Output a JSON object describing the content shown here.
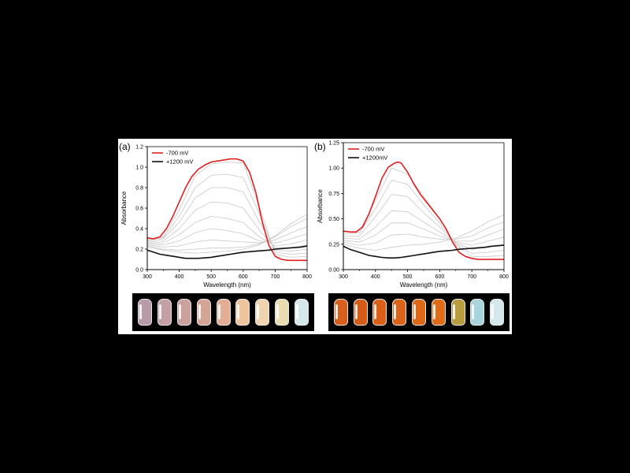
{
  "chart_data": [
    {
      "type": "line",
      "panel_label": "(a)",
      "xlabel": "Wavelength (nm)",
      "ylabel": "Absorbance",
      "xlim": [
        300,
        800
      ],
      "ylim": [
        0.0,
        1.2
      ],
      "xticks": [
        300,
        400,
        500,
        600,
        700,
        800
      ],
      "yticks": [
        0.0,
        0.2,
        0.4,
        0.6,
        0.8,
        1.0,
        1.2
      ],
      "xtick_labels": [
        "300",
        "400",
        "500",
        "600",
        "700",
        "800"
      ],
      "ytick_labels": [
        "0.0",
        "0.2",
        "0.4",
        "0.6",
        "0.8",
        "1.0",
        "1.2"
      ],
      "legend_position": "top-left",
      "series": [
        {
          "name": "-700 mV",
          "color": "#e02020",
          "width": 1.6,
          "x": [
            300,
            320,
            340,
            360,
            380,
            400,
            420,
            440,
            460,
            480,
            500,
            520,
            540,
            560,
            580,
            600,
            620,
            640,
            660,
            680,
            700,
            720,
            740,
            760,
            780,
            800
          ],
          "y": [
            0.31,
            0.3,
            0.32,
            0.4,
            0.52,
            0.66,
            0.8,
            0.91,
            0.98,
            1.02,
            1.05,
            1.06,
            1.07,
            1.08,
            1.08,
            1.06,
            0.95,
            0.75,
            0.46,
            0.24,
            0.13,
            0.1,
            0.09,
            0.09,
            0.09,
            0.09
          ]
        },
        {
          "name": "+1200 mV",
          "color": "#111111",
          "width": 1.6,
          "x": [
            300,
            320,
            340,
            360,
            380,
            400,
            420,
            440,
            460,
            480,
            500,
            520,
            540,
            560,
            580,
            600,
            620,
            640,
            660,
            680,
            700,
            720,
            740,
            760,
            780,
            800
          ],
          "y": [
            0.19,
            0.17,
            0.15,
            0.14,
            0.13,
            0.12,
            0.11,
            0.11,
            0.11,
            0.115,
            0.12,
            0.13,
            0.14,
            0.15,
            0.16,
            0.17,
            0.175,
            0.18,
            0.185,
            0.19,
            0.2,
            0.205,
            0.21,
            0.215,
            0.22,
            0.23
          ]
        },
        {
          "color": "#c8c8c8",
          "width": 0.8,
          "x": [
            300,
            350,
            400,
            450,
            500,
            550,
            600,
            650,
            700,
            750,
            800
          ],
          "y": [
            0.3,
            0.32,
            0.58,
            0.92,
            1.03,
            1.05,
            1.04,
            0.62,
            0.15,
            0.12,
            0.13
          ]
        },
        {
          "color": "#c8c8c8",
          "width": 0.8,
          "x": [
            300,
            350,
            400,
            450,
            500,
            550,
            600,
            650,
            700,
            750,
            800
          ],
          "y": [
            0.29,
            0.31,
            0.52,
            0.8,
            0.92,
            0.93,
            0.9,
            0.55,
            0.17,
            0.15,
            0.16
          ]
        },
        {
          "color": "#c8c8c8",
          "width": 0.8,
          "x": [
            300,
            350,
            400,
            450,
            500,
            550,
            600,
            650,
            700,
            750,
            800
          ],
          "y": [
            0.28,
            0.3,
            0.46,
            0.7,
            0.8,
            0.8,
            0.76,
            0.47,
            0.19,
            0.18,
            0.2
          ]
        },
        {
          "color": "#c8c8c8",
          "width": 0.8,
          "x": [
            300,
            350,
            400,
            450,
            500,
            550,
            600,
            650,
            700,
            750,
            800
          ],
          "y": [
            0.27,
            0.28,
            0.4,
            0.58,
            0.66,
            0.65,
            0.6,
            0.39,
            0.21,
            0.21,
            0.24
          ]
        },
        {
          "color": "#c8c8c8",
          "width": 0.8,
          "x": [
            300,
            350,
            400,
            450,
            500,
            550,
            600,
            650,
            700,
            750,
            800
          ],
          "y": [
            0.26,
            0.26,
            0.34,
            0.46,
            0.52,
            0.5,
            0.46,
            0.32,
            0.23,
            0.25,
            0.29
          ]
        },
        {
          "color": "#c8c8c8",
          "width": 0.8,
          "x": [
            300,
            350,
            400,
            450,
            500,
            550,
            600,
            650,
            700,
            750,
            800
          ],
          "y": [
            0.25,
            0.24,
            0.28,
            0.36,
            0.4,
            0.38,
            0.35,
            0.28,
            0.26,
            0.3,
            0.35
          ]
        },
        {
          "color": "#c8c8c8",
          "width": 0.8,
          "x": [
            300,
            350,
            400,
            450,
            500,
            550,
            600,
            650,
            700,
            750,
            800
          ],
          "y": [
            0.24,
            0.22,
            0.23,
            0.27,
            0.29,
            0.28,
            0.27,
            0.26,
            0.29,
            0.36,
            0.42
          ]
        },
        {
          "color": "#c8c8c8",
          "width": 0.8,
          "x": [
            300,
            350,
            400,
            450,
            500,
            550,
            600,
            650,
            700,
            750,
            800
          ],
          "y": [
            0.23,
            0.2,
            0.19,
            0.2,
            0.21,
            0.21,
            0.22,
            0.25,
            0.32,
            0.42,
            0.5
          ]
        },
        {
          "color": "#c8c8c8",
          "width": 0.8,
          "x": [
            300,
            350,
            400,
            450,
            500,
            550,
            600,
            650,
            700,
            750,
            800
          ],
          "y": [
            0.22,
            0.19,
            0.17,
            0.16,
            0.17,
            0.18,
            0.2,
            0.24,
            0.33,
            0.45,
            0.54
          ]
        }
      ],
      "vials": [
        "#b89aa8",
        "#c4a0a4",
        "#cca09c",
        "#d4a494",
        "#e2ae96",
        "#eec49c",
        "#f0d4ae",
        "#e8dcb0",
        "#d4e8ec"
      ]
    },
    {
      "type": "line",
      "panel_label": "(b)",
      "xlabel": "Wavelength (nm)",
      "ylabel": "Absorbance",
      "xlim": [
        300,
        800
      ],
      "ylim": [
        0.0,
        1.25
      ],
      "xticks": [
        300,
        400,
        500,
        600,
        700,
        800
      ],
      "yticks": [
        0.0,
        0.25,
        0.5,
        0.75,
        1.0,
        1.25
      ],
      "xtick_labels": [
        "300",
        "400",
        "500",
        "600",
        "700",
        "800"
      ],
      "ytick_labels": [
        "0.00",
        "0.25",
        "0.50",
        "0.75",
        "1.00",
        "1.25"
      ],
      "legend_position": "top-left",
      "series": [
        {
          "name": "-700 mV",
          "color": "#e02020",
          "width": 1.6,
          "x": [
            300,
            320,
            340,
            360,
            380,
            400,
            420,
            440,
            460,
            470,
            480,
            500,
            520,
            540,
            560,
            580,
            600,
            620,
            640,
            660,
            680,
            700,
            720,
            740,
            760,
            780,
            800
          ],
          "y": [
            0.38,
            0.37,
            0.37,
            0.42,
            0.55,
            0.72,
            0.9,
            1.01,
            1.05,
            1.06,
            1.05,
            0.96,
            0.84,
            0.74,
            0.66,
            0.58,
            0.5,
            0.4,
            0.27,
            0.17,
            0.13,
            0.11,
            0.1,
            0.1,
            0.1,
            0.1,
            0.1
          ]
        },
        {
          "name": "+1200mV",
          "color": "#111111",
          "width": 1.6,
          "x": [
            300,
            320,
            340,
            360,
            380,
            400,
            420,
            440,
            460,
            480,
            500,
            520,
            540,
            560,
            580,
            600,
            620,
            640,
            660,
            680,
            700,
            720,
            740,
            760,
            780,
            800
          ],
          "y": [
            0.23,
            0.2,
            0.18,
            0.16,
            0.14,
            0.13,
            0.12,
            0.115,
            0.115,
            0.12,
            0.13,
            0.14,
            0.15,
            0.16,
            0.17,
            0.18,
            0.185,
            0.19,
            0.2,
            0.205,
            0.21,
            0.215,
            0.22,
            0.23,
            0.235,
            0.24
          ]
        },
        {
          "color": "#c8c8c8",
          "width": 0.8,
          "x": [
            300,
            350,
            400,
            450,
            500,
            550,
            600,
            650,
            700,
            750,
            800
          ],
          "y": [
            0.37,
            0.38,
            0.68,
            1.0,
            0.94,
            0.72,
            0.5,
            0.24,
            0.13,
            0.13,
            0.14
          ]
        },
        {
          "color": "#c8c8c8",
          "width": 0.8,
          "x": [
            300,
            350,
            400,
            450,
            500,
            550,
            600,
            650,
            700,
            750,
            800
          ],
          "y": [
            0.35,
            0.36,
            0.6,
            0.88,
            0.84,
            0.64,
            0.46,
            0.25,
            0.16,
            0.17,
            0.19
          ]
        },
        {
          "color": "#c8c8c8",
          "width": 0.8,
          "x": [
            300,
            350,
            400,
            450,
            500,
            550,
            600,
            650,
            700,
            750,
            800
          ],
          "y": [
            0.33,
            0.33,
            0.52,
            0.74,
            0.72,
            0.56,
            0.42,
            0.26,
            0.2,
            0.22,
            0.25
          ]
        },
        {
          "color": "#c8c8c8",
          "width": 0.8,
          "x": [
            300,
            350,
            400,
            450,
            500,
            550,
            600,
            650,
            700,
            750,
            800
          ],
          "y": [
            0.31,
            0.3,
            0.42,
            0.58,
            0.57,
            0.47,
            0.37,
            0.27,
            0.24,
            0.28,
            0.32
          ]
        },
        {
          "color": "#c8c8c8",
          "width": 0.8,
          "x": [
            300,
            350,
            400,
            450,
            500,
            550,
            600,
            650,
            700,
            750,
            800
          ],
          "y": [
            0.29,
            0.27,
            0.34,
            0.46,
            0.46,
            0.4,
            0.33,
            0.28,
            0.28,
            0.34,
            0.4
          ]
        },
        {
          "color": "#c8c8c8",
          "width": 0.8,
          "x": [
            300,
            350,
            400,
            450,
            500,
            550,
            600,
            650,
            700,
            750,
            800
          ],
          "y": [
            0.27,
            0.24,
            0.26,
            0.34,
            0.35,
            0.32,
            0.3,
            0.3,
            0.33,
            0.41,
            0.47
          ]
        },
        {
          "color": "#c8c8c8",
          "width": 0.8,
          "x": [
            300,
            350,
            400,
            450,
            500,
            550,
            600,
            650,
            700,
            750,
            800
          ],
          "y": [
            0.25,
            0.21,
            0.19,
            0.22,
            0.24,
            0.25,
            0.27,
            0.31,
            0.38,
            0.47,
            0.54
          ]
        }
      ],
      "vials": [
        "#d8601c",
        "#d45c18",
        "#d86018",
        "#dc6418",
        "#dc6818",
        "#e06c18",
        "#b89c40",
        "#a8d4dc",
        "#d4e8ec"
      ]
    }
  ]
}
